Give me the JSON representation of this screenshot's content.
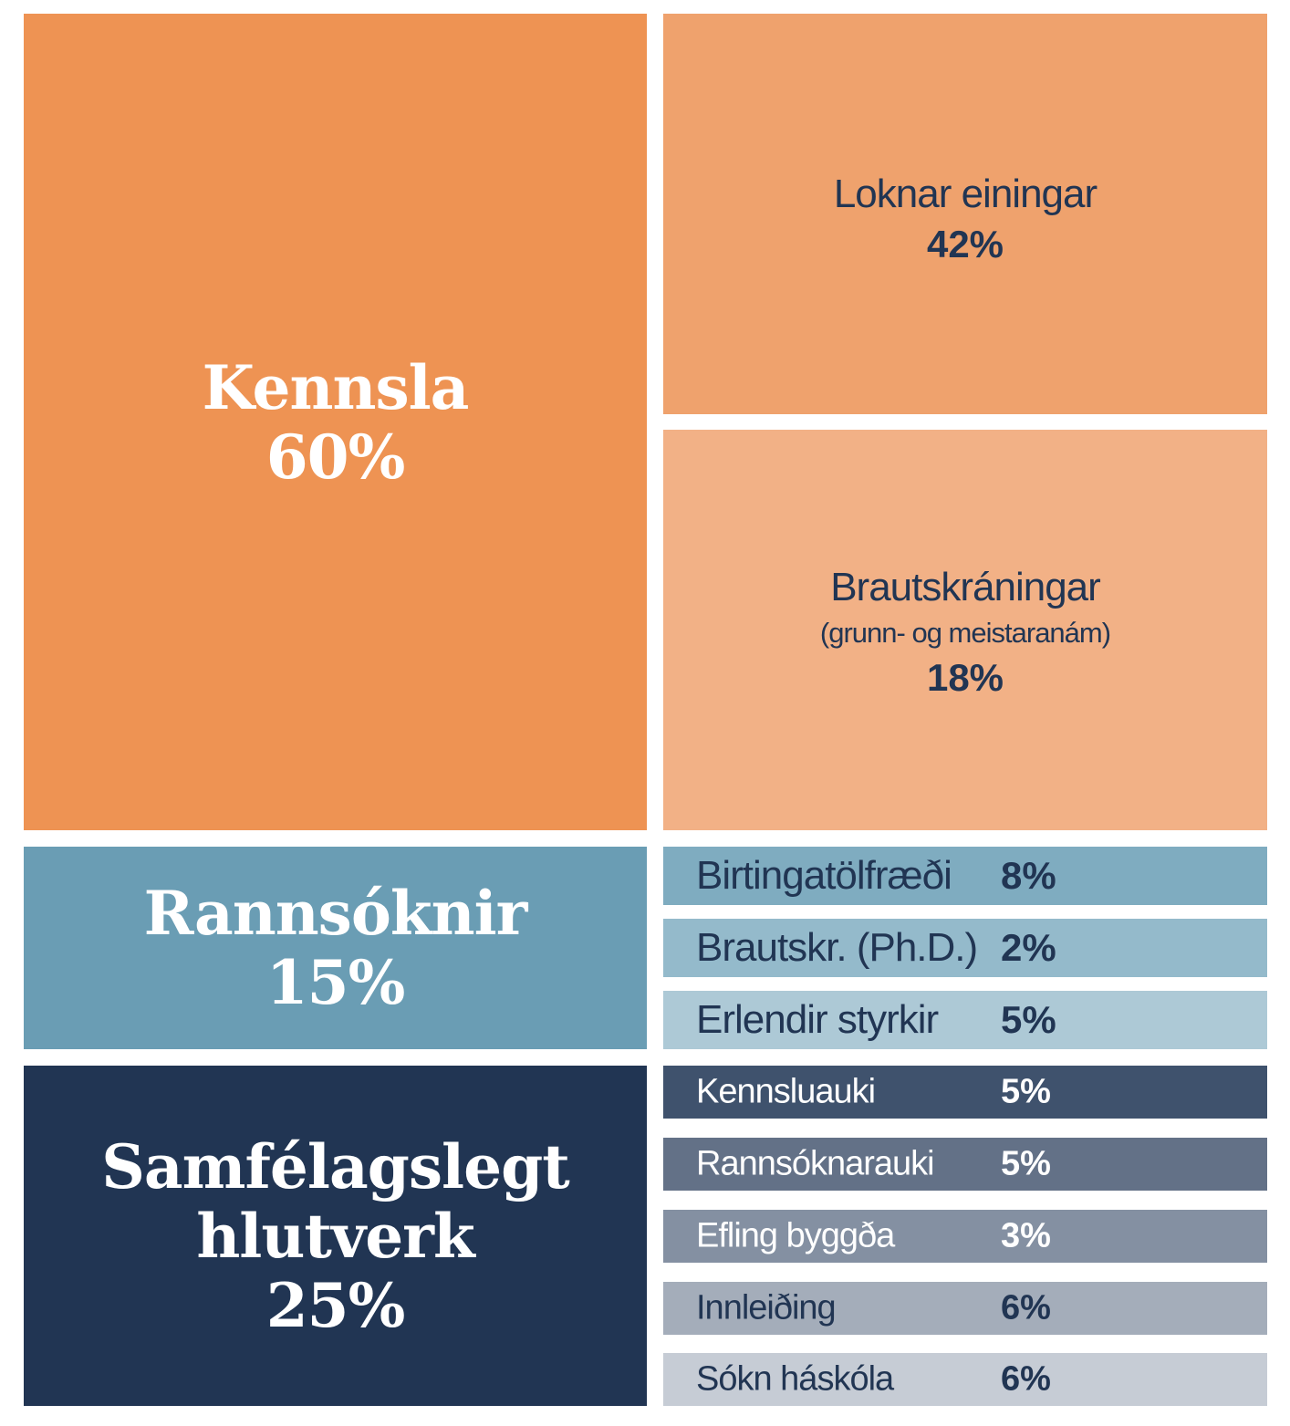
{
  "main_blocks": {
    "kennsla": {
      "label": "Kennsla",
      "pct": "60%",
      "color": "#EE9353"
    },
    "rannsoknir": {
      "label": "Rannsóknir",
      "pct": "15%",
      "color": "#6A9DB4"
    },
    "samfelag": {
      "label_line1": "Samfélagslegt",
      "label_line2": "hlutverk",
      "pct": "25%",
      "color": "#213553"
    }
  },
  "teaching_items": [
    {
      "label": "Loknar einingar",
      "pct": "42%",
      "color": "#EFA26D"
    },
    {
      "label": "Brautskráningar",
      "note": "(grunn- og meistaranám)",
      "pct": "18%",
      "color": "#F2B186"
    }
  ],
  "research_items": [
    {
      "label": "Birtingatölfræði",
      "pct": "8%",
      "color": "#7FACC0"
    },
    {
      "label": "Brautskr. (Ph.D.)",
      "pct": "2%",
      "color": "#94BACB"
    },
    {
      "label": "Erlendir styrkir",
      "pct": "5%",
      "color": "#ADC9D6"
    }
  ],
  "social_items": [
    {
      "label": "Kennsluauki",
      "pct": "5%",
      "color": "#3F526D"
    },
    {
      "label": "Rannsóknarauki",
      "pct": "5%",
      "color": "#637187"
    },
    {
      "label": "Efling byggða",
      "pct": "3%",
      "color": "#8490A2"
    },
    {
      "label": "Innleiðing",
      "pct": "6%",
      "color": "#A4ADBA"
    },
    {
      "label": "Sókn háskóla",
      "pct": "6%",
      "color": "#C6CCD5"
    }
  ]
}
